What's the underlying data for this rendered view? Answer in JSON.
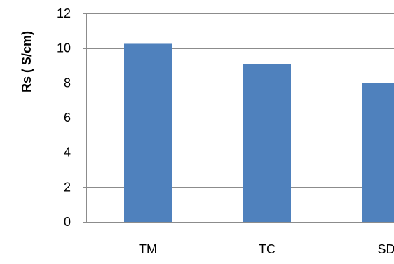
{
  "chart_data": {
    "type": "bar",
    "title": "",
    "xlabel": "",
    "ylabel": "Rs ( S/cm)",
    "categories": [
      "TM",
      "TC",
      "SD"
    ],
    "series": [
      {
        "values": [
          10.25,
          9.1,
          8.0
        ]
      }
    ],
    "ylim": [
      0,
      12
    ],
    "yticks": [
      0,
      2,
      4,
      6,
      8,
      10,
      12
    ],
    "grid": true,
    "legend": "none",
    "colors": {
      "bar": "#4F81BD",
      "grid": "#8C8C8C",
      "text": "#000000"
    }
  }
}
